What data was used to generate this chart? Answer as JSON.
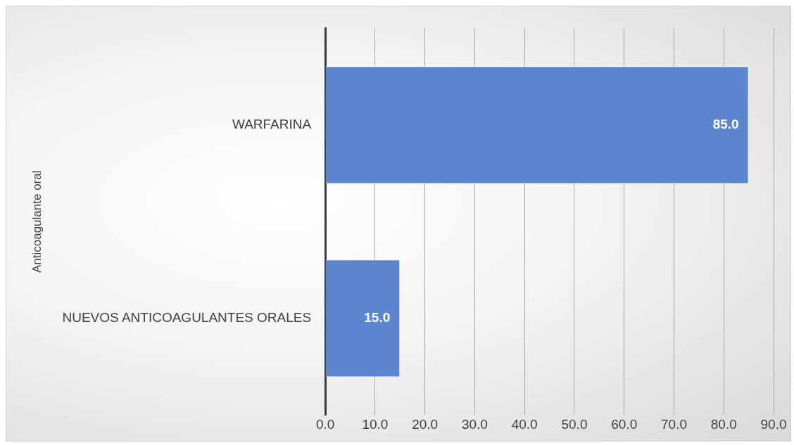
{
  "chart_data": {
    "type": "bar",
    "orientation": "horizontal",
    "ylabel": "Anticoagulante oral",
    "categories": [
      "WARFARINA",
      "NUEVOS ANTICOAGULANTES ORALES"
    ],
    "values": [
      85,
      15
    ],
    "value_labels": [
      "85.0",
      "15.0"
    ],
    "color": "#5b86cf",
    "xlim": [
      0,
      90
    ],
    "xticks": [
      {
        "value": 0,
        "label": "0.0"
      },
      {
        "value": 10,
        "label": "10.0"
      },
      {
        "value": 20,
        "label": "20.0"
      },
      {
        "value": 30,
        "label": "30.0"
      },
      {
        "value": 40,
        "label": "40.0"
      },
      {
        "value": 50,
        "label": "50.0"
      },
      {
        "value": 60,
        "label": "60.0"
      },
      {
        "value": 70,
        "label": "70.0"
      },
      {
        "value": 80,
        "label": "80.0"
      },
      {
        "value": 90,
        "label": "90.0"
      }
    ],
    "grid": "x",
    "legend": false
  }
}
